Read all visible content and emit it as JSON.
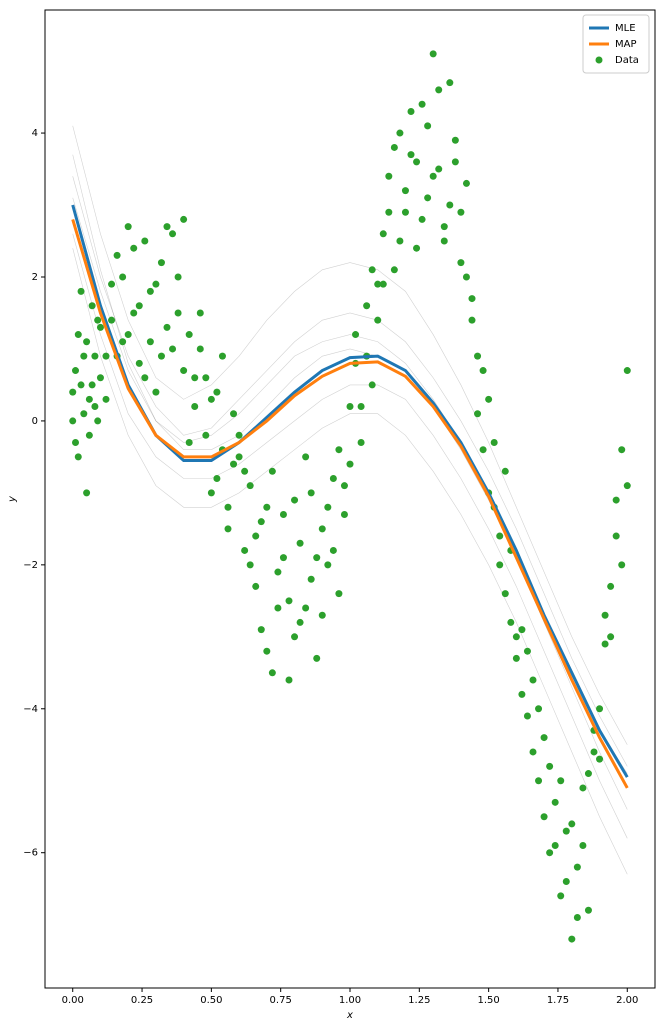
{
  "chart_data": {
    "type": "line",
    "xlabel": "x",
    "ylabel": "y",
    "xlim": [
      -0.1,
      2.1
    ],
    "ylim": [
      -7.88,
      5.71
    ],
    "xticks": [
      {
        "value": 0,
        "label": "0.00"
      },
      0.25,
      {
        "value": 0.5,
        "label": "0.50"
      },
      0.75,
      {
        "value": 1,
        "label": "1.00"
      },
      1.25,
      {
        "value": 1.5,
        "label": "1.50"
      },
      1.75,
      {
        "value": 2,
        "label": "2.00"
      }
    ],
    "yticks": [
      {
        "value": -6,
        "label": "−6"
      },
      {
        "value": -4,
        "label": "−4"
      },
      {
        "value": -2,
        "label": "−2"
      },
      0,
      2,
      4
    ],
    "legend": "upper right",
    "x": [
      0,
      0.1,
      0.2,
      0.3,
      0.4,
      0.5,
      0.6,
      0.7,
      0.8,
      0.9,
      1.0,
      1.1,
      1.2,
      1.3,
      1.4,
      1.5,
      1.6,
      1.7,
      1.8,
      1.9,
      2.0
    ],
    "samples_color": "#000000",
    "samples": [
      {
        "values": [
          4.1,
          2.6,
          1.4,
          0.6,
          0.3,
          0.5,
          0.9,
          1.4,
          1.8,
          2.1,
          2.2,
          2.1,
          1.8,
          1.2,
          0.5,
          -0.3,
          -1.2,
          -2.1,
          -3.0,
          -3.8,
          -4.5
        ]
      },
      {
        "values": [
          2.4,
          0.9,
          -0.2,
          -0.9,
          -1.2,
          -1.2,
          -1.0,
          -0.7,
          -0.4,
          -0.1,
          0.1,
          0.1,
          -0.2,
          -0.7,
          -1.3,
          -2.0,
          -2.8,
          -3.7,
          -4.6,
          -5.5,
          -6.3
        ]
      },
      {
        "values": [
          3.4,
          2.0,
          0.9,
          0.2,
          -0.2,
          -0.1,
          0.3,
          0.7,
          1.1,
          1.4,
          1.5,
          1.4,
          1.1,
          0.6,
          0.0,
          -0.7,
          -1.5,
          -2.4,
          -3.3,
          -4.1,
          -4.8
        ]
      },
      {
        "values": [
          2.6,
          1.2,
          0.1,
          -0.5,
          -0.8,
          -0.8,
          -0.6,
          -0.3,
          0.0,
          0.3,
          0.5,
          0.5,
          0.3,
          -0.2,
          -0.8,
          -1.5,
          -2.3,
          -3.2,
          -4.1,
          -5.0,
          -5.8
        ]
      },
      {
        "values": [
          3.7,
          2.1,
          0.8,
          0.0,
          -0.3,
          -0.2,
          0.1,
          0.5,
          0.9,
          1.1,
          1.2,
          1.1,
          0.8,
          0.3,
          -0.3,
          -1.0,
          -1.9,
          -2.8,
          -3.6,
          -4.3,
          -4.9
        ]
      },
      {
        "values": [
          3.1,
          1.8,
          0.7,
          0.0,
          -0.4,
          -0.4,
          -0.2,
          0.2,
          0.6,
          0.9,
          1.0,
          0.9,
          0.7,
          0.2,
          -0.4,
          -1.1,
          -1.9,
          -2.8,
          -3.7,
          -4.6,
          -5.4
        ]
      }
    ],
    "series": [
      {
        "name": "MLE",
        "color": "#1f77b4",
        "values": [
          3.0,
          1.6,
          0.5,
          -0.2,
          -0.55,
          -0.55,
          -0.3,
          0.05,
          0.4,
          0.7,
          0.88,
          0.9,
          0.7,
          0.25,
          -0.3,
          -1.0,
          -1.8,
          -2.7,
          -3.5,
          -4.3,
          -4.95
        ]
      },
      {
        "name": "MAP",
        "color": "#ff7f0e",
        "values": [
          2.8,
          1.5,
          0.45,
          -0.2,
          -0.5,
          -0.5,
          -0.3,
          0.0,
          0.35,
          0.62,
          0.8,
          0.82,
          0.62,
          0.2,
          -0.35,
          -1.05,
          -1.9,
          -2.75,
          -3.6,
          -4.4,
          -5.1
        ]
      }
    ],
    "scatter": {
      "name": "Data",
      "color": "#2ca02c",
      "x": [
        0.0,
        0.01,
        0.02,
        0.03,
        0.04,
        0.05,
        0.06,
        0.07,
        0.08,
        0.09,
        0.1,
        0.12,
        0.14,
        0.16,
        0.18,
        0.2,
        0.22,
        0.24,
        0.26,
        0.28,
        0.3,
        0.32,
        0.34,
        0.36,
        0.38,
        0.4,
        0.42,
        0.44,
        0.46,
        0.48,
        0.5,
        0.52,
        0.54,
        0.56,
        0.58,
        0.6,
        0.62,
        0.64,
        0.66,
        0.68,
        0.7,
        0.72,
        0.74,
        0.76,
        0.78,
        0.8,
        0.82,
        0.84,
        0.86,
        0.88,
        0.9,
        0.92,
        0.94,
        0.96,
        0.98,
        1.0,
        1.02,
        1.04,
        1.06,
        1.08,
        1.1,
        1.12,
        1.14,
        1.16,
        1.18,
        1.2,
        1.22,
        1.24,
        1.26,
        1.28,
        1.3,
        1.32,
        1.34,
        1.36,
        1.38,
        1.4,
        1.42,
        1.44,
        1.46,
        1.48,
        1.5,
        1.52,
        1.54,
        1.56,
        1.58,
        1.6,
        1.62,
        1.64,
        1.66,
        1.68,
        1.7,
        1.72,
        1.74,
        1.76,
        1.78,
        1.8,
        1.82,
        1.84,
        1.86,
        1.88,
        1.9,
        1.92,
        1.94,
        1.96,
        1.98,
        2.0,
        0.0,
        0.01,
        0.02,
        0.03,
        0.04,
        0.05,
        0.06,
        0.07,
        0.08,
        0.09,
        0.1,
        0.12,
        0.14,
        0.16,
        0.18,
        0.2,
        0.22,
        0.24,
        0.26,
        0.28,
        0.3,
        0.32,
        0.34,
        0.36,
        0.38,
        0.4,
        0.42,
        0.44,
        0.46,
        0.48,
        0.5,
        0.52,
        0.54,
        0.56,
        0.58,
        0.6,
        0.62,
        0.64,
        0.66,
        0.68,
        0.7,
        0.72,
        0.74,
        0.76,
        0.78,
        0.8,
        0.82,
        0.84,
        0.86,
        0.88,
        0.9,
        0.92,
        0.94,
        0.96,
        0.98,
        1.0,
        1.02,
        1.04,
        1.06,
        1.08,
        1.1,
        1.12,
        1.14,
        1.16,
        1.18,
        1.2,
        1.22,
        1.24,
        1.26,
        1.28,
        1.3,
        1.32,
        1.34,
        1.36,
        1.38,
        1.4,
        1.42,
        1.44,
        1.46,
        1.48,
        1.5,
        1.52,
        1.54,
        1.56,
        1.58,
        1.6,
        1.62,
        1.64,
        1.66,
        1.68,
        1.7,
        1.72,
        1.74,
        1.76,
        1.78,
        1.8,
        1.82,
        1.84,
        1.86,
        1.88,
        1.9,
        1.92,
        1.94,
        1.96,
        1.98,
        2.0
      ],
      "y": [
        0.0,
        -0.3,
        1.2,
        0.5,
        0.9,
        -1.0,
        0.3,
        1.6,
        0.2,
        1.4,
        0.6,
        0.9,
        1.9,
        2.3,
        1.1,
        2.7,
        1.5,
        0.8,
        2.5,
        1.8,
        0.4,
        2.2,
        1.3,
        2.6,
        2.0,
        2.8,
        1.2,
        0.6,
        1.5,
        -0.2,
        0.3,
        -0.8,
        0.9,
        -1.2,
        0.1,
        -0.5,
        -1.8,
        -0.9,
        -2.3,
        -1.4,
        -3.2,
        -0.7,
        -2.6,
        -1.9,
        -3.6,
        -1.1,
        -2.8,
        -0.5,
        -2.2,
        -3.3,
        -1.5,
        -2.0,
        -0.8,
        -2.4,
        -1.3,
        0.2,
        0.8,
        -0.3,
        1.6,
        0.5,
        1.9,
        2.6,
        3.4,
        2.1,
        4.0,
        2.9,
        3.7,
        2.4,
        4.4,
        3.1,
        5.1,
        3.5,
        2.7,
        4.7,
        3.9,
        2.2,
        3.3,
        1.7,
        0.9,
        -0.4,
        0.3,
        -1.2,
        -2.0,
        -0.7,
        -2.8,
        -3.3,
        -2.9,
        -4.1,
        -3.6,
        -5.0,
        -4.4,
        -6.0,
        -5.3,
        -6.6,
        -5.7,
        -7.2,
        -6.2,
        -5.1,
        -6.8,
        -4.6,
        -4.0,
        -3.1,
        -2.3,
        -1.6,
        -0.4,
        0.7,
        0.4,
        0.7,
        -0.5,
        1.8,
        0.1,
        1.1,
        -0.2,
        0.5,
        0.9,
        0.0,
        1.3,
        0.3,
        1.4,
        0.9,
        2.0,
        1.2,
        2.4,
        1.6,
        0.6,
        1.1,
        1.9,
        0.9,
        2.7,
        1.0,
        1.5,
        0.7,
        -0.3,
        0.2,
        1.0,
        0.6,
        -1.0,
        0.4,
        -0.4,
        -1.5,
        -0.6,
        -0.2,
        -0.7,
        -2.0,
        -1.6,
        -2.9,
        -1.2,
        -3.5,
        -2.1,
        -1.3,
        -2.5,
        -3.0,
        -1.7,
        -2.6,
        -1.0,
        -1.9,
        -2.7,
        -1.2,
        -1.8,
        -0.4,
        -0.9,
        -0.6,
        1.2,
        0.2,
        0.9,
        2.1,
        1.4,
        1.9,
        2.9,
        3.8,
        2.5,
        3.2,
        4.3,
        3.6,
        2.8,
        4.1,
        3.4,
        4.6,
        2.5,
        3.0,
        3.6,
        2.9,
        2.0,
        1.4,
        0.1,
        0.7,
        -1.0,
        -0.3,
        -1.6,
        -2.4,
        -1.8,
        -3.0,
        -3.8,
        -3.2,
        -4.6,
        -4.0,
        -5.5,
        -4.8,
        -5.9,
        -5.0,
        -6.4,
        -5.6,
        -6.9,
        -5.9,
        -4.9,
        -4.3,
        -4.7,
        -2.7,
        -3.0,
        -1.1,
        -2.0,
        -0.9
      ]
    }
  }
}
